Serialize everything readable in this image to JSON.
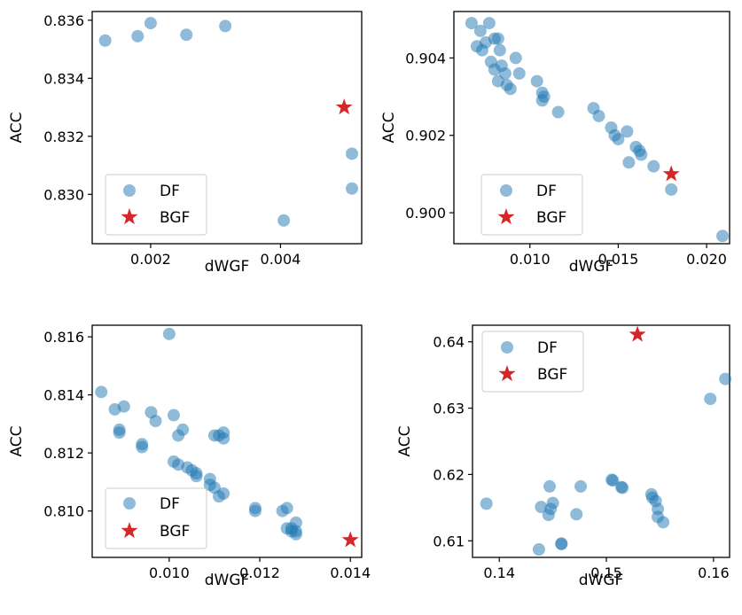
{
  "colors": {
    "df": "#1f77b4",
    "df_opacity": 0.5,
    "bgf": "#d62728",
    "axis": "#000000",
    "legend_border": "#cccccc"
  },
  "chart_data": [
    {
      "type": "scatter",
      "xlabel": "dWGF",
      "ylabel": "ACC",
      "xlim": [
        0.0011,
        0.00525
      ],
      "ylim": [
        0.8283,
        0.8363
      ],
      "xticks": [
        0.002,
        0.004
      ],
      "xtick_labels": [
        "0.002",
        "0.004"
      ],
      "yticks": [
        0.83,
        0.832,
        0.834,
        0.836
      ],
      "ytick_labels": [
        "0.830",
        "0.832",
        "0.834",
        "0.836"
      ],
      "legend": {
        "placement": "lower-left",
        "entries": [
          "DF",
          "BGF"
        ]
      },
      "series": [
        {
          "name": "DF",
          "marker": "circle",
          "x": [
            0.0013,
            0.0018,
            0.002,
            0.00255,
            0.00315,
            0.00405,
            0.0051,
            0.0051
          ],
          "y": [
            0.8353,
            0.83545,
            0.8359,
            0.8355,
            0.8358,
            0.8291,
            0.8314,
            0.8302
          ]
        },
        {
          "name": "BGF",
          "marker": "star",
          "x": [
            0.00498
          ],
          "y": [
            0.833
          ]
        }
      ]
    },
    {
      "type": "scatter",
      "xlabel": "dWGF",
      "ylabel": "ACC",
      "xlim": [
        0.0057,
        0.0213
      ],
      "ylim": [
        0.8992,
        0.9052
      ],
      "xticks": [
        0.01,
        0.015,
        0.02
      ],
      "xtick_labels": [
        "0.010",
        "0.015",
        "0.020"
      ],
      "yticks": [
        0.9,
        0.902,
        0.904
      ],
      "ytick_labels": [
        "0.900",
        "0.902",
        "0.904"
      ],
      "legend": {
        "placement": "lower-left",
        "entries": [
          "DF",
          "BGF"
        ]
      },
      "series": [
        {
          "name": "DF",
          "marker": "circle",
          "x": [
            0.0067,
            0.0072,
            0.0077,
            0.007,
            0.0075,
            0.0073,
            0.0082,
            0.008,
            0.0083,
            0.0078,
            0.0084,
            0.0092,
            0.008,
            0.0086,
            0.0094,
            0.0082,
            0.0087,
            0.0089,
            0.0104,
            0.0107,
            0.0108,
            0.0107,
            0.0116,
            0.0136,
            0.0139,
            0.0146,
            0.0148,
            0.015,
            0.0155,
            0.016,
            0.0162,
            0.0163,
            0.0156,
            0.017,
            0.018,
            0.0209
          ],
          "y": [
            0.9049,
            0.9047,
            0.9049,
            0.9043,
            0.9044,
            0.9042,
            0.9045,
            0.9045,
            0.9042,
            0.9039,
            0.9038,
            0.904,
            0.9037,
            0.9036,
            0.9036,
            0.9034,
            0.9033,
            0.9032,
            0.9034,
            0.9031,
            0.903,
            0.9029,
            0.9026,
            0.9027,
            0.9025,
            0.9022,
            0.902,
            0.9019,
            0.9021,
            0.9017,
            0.9016,
            0.9015,
            0.9013,
            0.9012,
            0.9006,
            0.8994
          ]
        },
        {
          "name": "BGF",
          "marker": "star",
          "x": [
            0.018
          ],
          "y": [
            0.901
          ]
        }
      ]
    },
    {
      "type": "scatter",
      "xlabel": "dWGF",
      "ylabel": "ACC",
      "xlim": [
        0.0083,
        0.01425
      ],
      "ylim": [
        0.8084,
        0.8164
      ],
      "xticks": [
        0.01,
        0.012,
        0.014
      ],
      "xtick_labels": [
        "0.010",
        "0.012",
        "0.014"
      ],
      "yticks": [
        0.81,
        0.812,
        0.814,
        0.816
      ],
      "ytick_labels": [
        "0.810",
        "0.812",
        "0.814",
        "0.816"
      ],
      "legend": {
        "placement": "lower-left",
        "entries": [
          "DF",
          "BGF"
        ]
      },
      "series": [
        {
          "name": "DF",
          "marker": "circle",
          "x": [
            0.01,
            0.0085,
            0.0088,
            0.009,
            0.0096,
            0.0097,
            0.0101,
            0.0103,
            0.0111,
            0.0112,
            0.0102,
            0.011,
            0.0112,
            0.0089,
            0.0089,
            0.0094,
            0.0094,
            0.0101,
            0.0102,
            0.0104,
            0.0105,
            0.0106,
            0.0106,
            0.0109,
            0.0109,
            0.011,
            0.0111,
            0.0112,
            0.0119,
            0.0119,
            0.0125,
            0.0126,
            0.0126,
            0.0127,
            0.0127,
            0.0128,
            0.0128,
            0.0128
          ],
          "y": [
            0.8161,
            0.8141,
            0.8135,
            0.8136,
            0.8134,
            0.8131,
            0.8133,
            0.8128,
            0.8126,
            0.8127,
            0.8126,
            0.8126,
            0.8125,
            0.8128,
            0.8127,
            0.8123,
            0.8122,
            0.8117,
            0.8116,
            0.8115,
            0.8114,
            0.8113,
            0.8112,
            0.8111,
            0.8109,
            0.8108,
            0.8105,
            0.8106,
            0.8101,
            0.81,
            0.81,
            0.8101,
            0.8094,
            0.8094,
            0.8093,
            0.8093,
            0.8092,
            0.8096
          ]
        },
        {
          "name": "BGF",
          "marker": "star",
          "x": [
            0.014
          ],
          "y": [
            0.809
          ]
        }
      ]
    },
    {
      "type": "scatter",
      "xlabel": "dWGF",
      "ylabel": "ACC",
      "xlim": [
        0.1375,
        0.1615
      ],
      "ylim": [
        0.6075,
        0.6425
      ],
      "xticks": [
        0.14,
        0.15,
        0.16
      ],
      "xtick_labels": [
        "0.14",
        "0.15",
        "0.16"
      ],
      "yticks": [
        0.61,
        0.62,
        0.63,
        0.64
      ],
      "ytick_labels": [
        "0.61",
        "0.62",
        "0.63",
        "0.64"
      ],
      "legend": {
        "placement": "upper-left",
        "entries": [
          "DF",
          "BGF"
        ]
      },
      "series": [
        {
          "name": "DF",
          "marker": "circle",
          "x": [
            0.1388,
            0.1437,
            0.1439,
            0.1446,
            0.1447,
            0.1448,
            0.145,
            0.1458,
            0.1458,
            0.1472,
            0.1476,
            0.1505,
            0.1506,
            0.1514,
            0.1515,
            0.1542,
            0.1543,
            0.1546,
            0.1548,
            0.1548,
            0.1553,
            0.1597,
            0.1611
          ],
          "y": [
            0.6156,
            0.6087,
            0.6151,
            0.6139,
            0.6182,
            0.6148,
            0.6157,
            0.6096,
            0.6095,
            0.614,
            0.6182,
            0.6192,
            0.6191,
            0.6181,
            0.618,
            0.617,
            0.6165,
            0.616,
            0.6136,
            0.6148,
            0.6128,
            0.6314,
            0.6344
          ]
        },
        {
          "name": "BGF",
          "marker": "star",
          "x": [
            0.1529
          ],
          "y": [
            0.6411
          ]
        }
      ]
    }
  ]
}
